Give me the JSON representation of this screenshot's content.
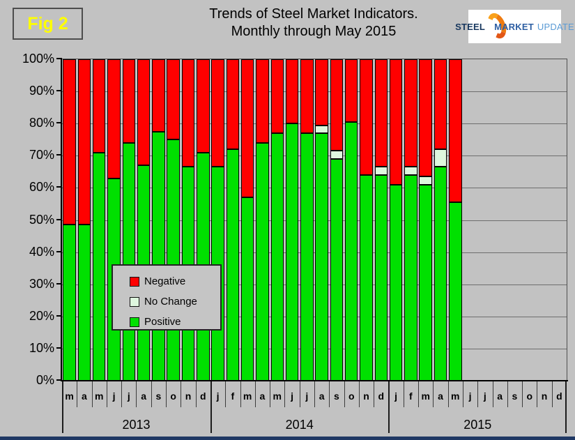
{
  "figure_label": "Fig 2",
  "title": {
    "line1": "Trends of Steel Market Indicators.",
    "line2": "Monthly through May 2015"
  },
  "logo": {
    "word1": "STEEL",
    "word2": "MARKET",
    "word3": "UPDATE"
  },
  "legend": {
    "items": [
      {
        "label": "Negative",
        "color": "#FF0000"
      },
      {
        "label": "No Change",
        "color": "#DEF7DE"
      },
      {
        "label": "Positive",
        "color": "#00E000"
      }
    ]
  },
  "footer_bar_color": "#1F3864",
  "chart_data": {
    "type": "bar",
    "subtype": "100%-stacked-column",
    "title": "Trends of Steel Market Indicators. Monthly through May 2015",
    "ylim": [
      0,
      100
    ],
    "grid": true,
    "legend_position": "inside-left",
    "y_ticks": [
      "100%",
      "90%",
      "80%",
      "70%",
      "60%",
      "50%",
      "40%",
      "30%",
      "20%",
      "10%",
      "0%"
    ],
    "colors": {
      "positive": "#00E000",
      "no_change": "#DEF7DE",
      "negative": "#FF0000"
    },
    "series_order_bottom_to_top": [
      "positive",
      "no_change",
      "negative"
    ],
    "years": [
      {
        "year": "2013",
        "months": [
          "m",
          "a",
          "m",
          "j",
          "j",
          "a",
          "s",
          "o",
          "n",
          "d"
        ]
      },
      {
        "year": "2014",
        "months": [
          "j",
          "f",
          "m",
          "a",
          "m",
          "j",
          "j",
          "a",
          "s",
          "o",
          "n",
          "d"
        ]
      },
      {
        "year": "2015",
        "months": [
          "j",
          "f",
          "m",
          "a",
          "m",
          "j",
          "j",
          "a",
          "s",
          "o",
          "n",
          "d"
        ]
      }
    ],
    "bars": [
      {
        "year": "2013",
        "month": "m",
        "positive": 48.5,
        "no_change": 0,
        "negative": 51.5
      },
      {
        "year": "2013",
        "month": "a",
        "positive": 48.5,
        "no_change": 0,
        "negative": 51.5
      },
      {
        "year": "2013",
        "month": "m",
        "positive": 71,
        "no_change": 0,
        "negative": 29
      },
      {
        "year": "2013",
        "month": "j",
        "positive": 63,
        "no_change": 0,
        "negative": 37
      },
      {
        "year": "2013",
        "month": "j",
        "positive": 74,
        "no_change": 0,
        "negative": 26
      },
      {
        "year": "2013",
        "month": "a",
        "positive": 67,
        "no_change": 0,
        "negative": 33
      },
      {
        "year": "2013",
        "month": "s",
        "positive": 77.5,
        "no_change": 0,
        "negative": 22.5
      },
      {
        "year": "2013",
        "month": "o",
        "positive": 75,
        "no_change": 0,
        "negative": 25
      },
      {
        "year": "2013",
        "month": "n",
        "positive": 66.5,
        "no_change": 0,
        "negative": 33.5
      },
      {
        "year": "2013",
        "month": "d",
        "positive": 71,
        "no_change": 0,
        "negative": 29
      },
      {
        "year": "2014",
        "month": "j",
        "positive": 66.5,
        "no_change": 0,
        "negative": 33.5
      },
      {
        "year": "2014",
        "month": "f",
        "positive": 72,
        "no_change": 0,
        "negative": 28
      },
      {
        "year": "2014",
        "month": "m",
        "positive": 57,
        "no_change": 0,
        "negative": 43
      },
      {
        "year": "2014",
        "month": "a",
        "positive": 74,
        "no_change": 0,
        "negative": 26
      },
      {
        "year": "2014",
        "month": "m",
        "positive": 77,
        "no_change": 0,
        "negative": 23
      },
      {
        "year": "2014",
        "month": "j",
        "positive": 80,
        "no_change": 0,
        "negative": 20
      },
      {
        "year": "2014",
        "month": "j",
        "positive": 77,
        "no_change": 0,
        "negative": 23
      },
      {
        "year": "2014",
        "month": "a",
        "positive": 77,
        "no_change": 2.5,
        "negative": 20.5
      },
      {
        "year": "2014",
        "month": "s",
        "positive": 69,
        "no_change": 2.5,
        "negative": 28.5
      },
      {
        "year": "2014",
        "month": "o",
        "positive": 80.5,
        "no_change": 0,
        "negative": 19.5
      },
      {
        "year": "2014",
        "month": "n",
        "positive": 64,
        "no_change": 0,
        "negative": 36
      },
      {
        "year": "2014",
        "month": "d",
        "positive": 64,
        "no_change": 2.5,
        "negative": 33.5
      },
      {
        "year": "2015",
        "month": "j",
        "positive": 61,
        "no_change": 0,
        "negative": 39
      },
      {
        "year": "2015",
        "month": "f",
        "positive": 64,
        "no_change": 2.5,
        "negative": 33.5
      },
      {
        "year": "2015",
        "month": "m",
        "positive": 61,
        "no_change": 2.5,
        "negative": 36.5
      },
      {
        "year": "2015",
        "month": "a",
        "positive": 66.5,
        "no_change": 5.5,
        "negative": 28
      },
      {
        "year": "2015",
        "month": "m",
        "positive": 55.5,
        "no_change": 0,
        "negative": 44.5
      }
    ]
  }
}
